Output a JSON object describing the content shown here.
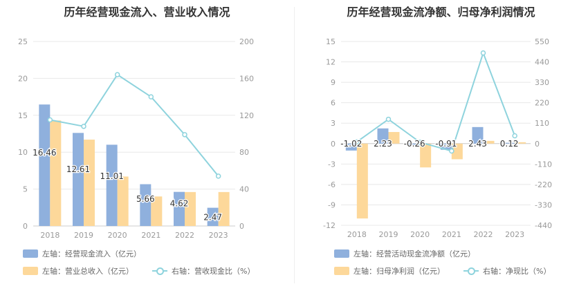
{
  "colors": {
    "bar_blue": "#8fb0dd",
    "bar_orange": "#fdd89a",
    "line": "#8ed3dd",
    "grid": "#e8e8e8",
    "axis_text": "#999999"
  },
  "chart_data": [
    {
      "type": "bar",
      "title": "历年经营现金流入、营业收入情况",
      "categories": [
        "2018",
        "2019",
        "2020",
        "2021",
        "2022",
        "2023"
      ],
      "y_left": {
        "ticks": [
          0,
          5,
          10,
          15,
          20,
          25
        ],
        "range": [
          0,
          25
        ]
      },
      "y_right": {
        "ticks": [
          0,
          40,
          80,
          120,
          160,
          200
        ],
        "range": [
          0,
          200
        ]
      },
      "series": [
        {
          "name": "左轴：经营现金流入（亿元）",
          "axis": "left",
          "kind": "bar",
          "values": [
            16.46,
            12.61,
            11.01,
            5.66,
            4.62,
            2.47
          ],
          "labels": [
            "16.46",
            "12.61",
            "11.01",
            "5.66",
            "4.62",
            "2.47"
          ]
        },
        {
          "name": "左轴：营业总收入（亿元）",
          "axis": "left",
          "kind": "bar",
          "values": [
            14.3,
            11.7,
            6.7,
            4.0,
            4.6,
            4.6
          ]
        },
        {
          "name": "右轴：营收现金比（%）",
          "axis": "right",
          "kind": "line",
          "values": [
            115,
            108,
            164,
            140,
            99,
            54
          ]
        }
      ],
      "legend": "bottom"
    },
    {
      "type": "bar",
      "title": "历年经营现金流净额、归母净利润情况",
      "categories": [
        "2018",
        "2019",
        "2020",
        "2021",
        "2022",
        "2023"
      ],
      "y_left": {
        "ticks": [
          -12,
          -9,
          -6,
          -3,
          0,
          3,
          6,
          9,
          12,
          15
        ],
        "range": [
          -12,
          15
        ]
      },
      "y_right": {
        "ticks": [
          -440,
          -330,
          -220,
          -110,
          0,
          110,
          220,
          330,
          440,
          550
        ],
        "range": [
          -440,
          550
        ]
      },
      "series": [
        {
          "name": "左轴：经营活动现金流净额（亿元）",
          "axis": "left",
          "kind": "bar",
          "values": [
            -1.02,
            2.23,
            -0.26,
            -0.91,
            2.43,
            0.12
          ],
          "labels": [
            "-1.02",
            "2.23",
            "-0.26",
            "-0.91",
            "2.43",
            "0.12"
          ]
        },
        {
          "name": "左轴：归母净利润（亿元）",
          "axis": "left",
          "kind": "bar",
          "values": [
            -11.0,
            1.7,
            -3.5,
            -2.3,
            0.4,
            0.2
          ]
        },
        {
          "name": "右轴：净现比（%）",
          "axis": "right",
          "kind": "line",
          "values": [
            9,
            131,
            7,
            -40,
            488,
            42
          ]
        }
      ],
      "legend": "bottom"
    }
  ]
}
